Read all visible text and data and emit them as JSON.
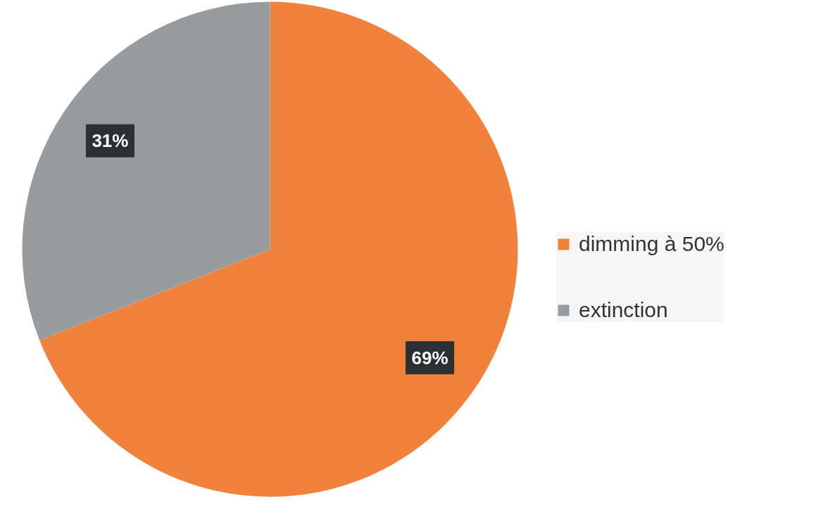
{
  "chart_data": {
    "type": "pie",
    "categories": [
      "dimming à 50%",
      "extinction"
    ],
    "values": [
      69,
      31
    ],
    "colors": [
      "#f0823c",
      "#999c9e"
    ],
    "value_labels": [
      "69%",
      "31%"
    ],
    "legend": "right"
  }
}
